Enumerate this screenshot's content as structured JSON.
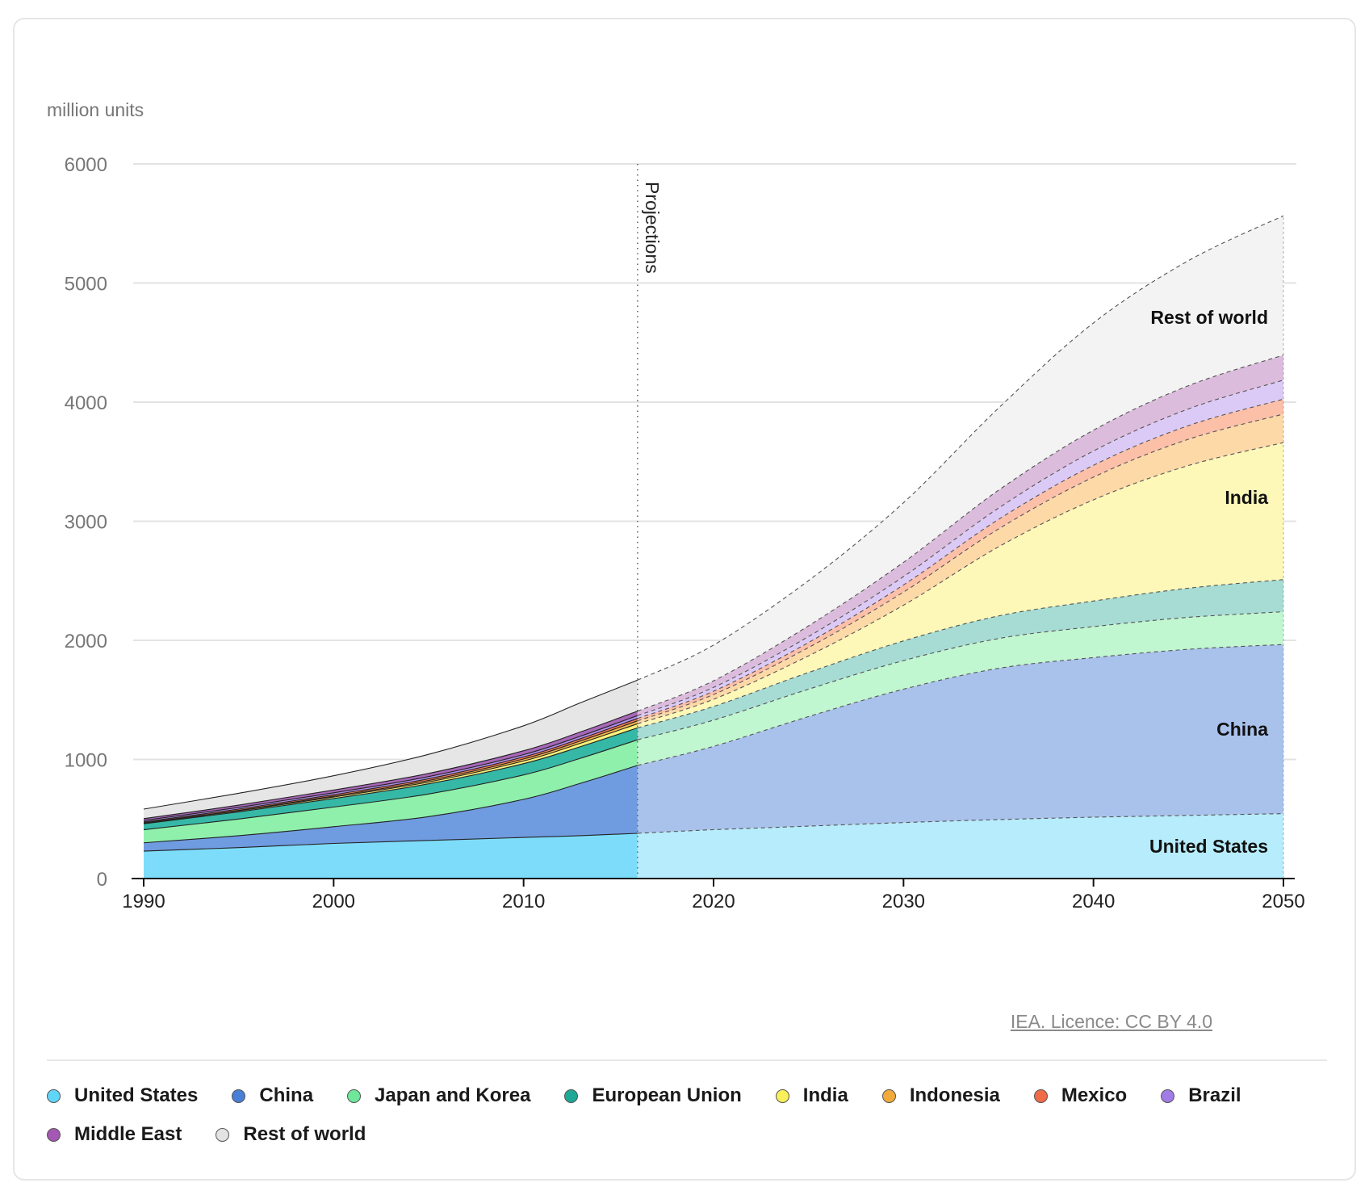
{
  "chart_data": {
    "type": "area",
    "stacked": true,
    "ylabel": "million units",
    "ylim": [
      0,
      6000
    ],
    "yticks": [
      0,
      1000,
      2000,
      3000,
      4000,
      5000,
      6000
    ],
    "xlim": [
      1990,
      2050
    ],
    "xticks": [
      1990,
      2000,
      2010,
      2020,
      2030,
      2040,
      2050
    ],
    "projection_start": 2016,
    "projection_label": "Projections",
    "x": [
      1990,
      1995,
      2000,
      2005,
      2010,
      2013,
      2016,
      2020,
      2025,
      2030,
      2035,
      2040,
      2045,
      2050
    ],
    "series": [
      {
        "name": "United States",
        "color": "#7edcfb",
        "proj_color": "#b6ecfc",
        "inline_label": "United States",
        "values": [
          230,
          260,
          295,
          320,
          345,
          360,
          380,
          410,
          440,
          470,
          495,
          515,
          530,
          545
        ]
      },
      {
        "name": "China",
        "color": "#6f9be0",
        "proj_color": "#a9c2ec",
        "inline_label": "China",
        "values": [
          70,
          100,
          140,
          200,
          320,
          440,
          570,
          700,
          920,
          1120,
          1270,
          1340,
          1395,
          1420
        ]
      },
      {
        "name": "Japan and Korea",
        "color": "#8ff0ac",
        "proj_color": "#c0f6d0",
        "values": [
          110,
          140,
          165,
          190,
          205,
          210,
          215,
          220,
          230,
          240,
          250,
          260,
          268,
          275
        ]
      },
      {
        "name": "European Union",
        "color": "#36b8a6",
        "proj_color": "#a6dcd4",
        "values": [
          50,
          60,
          72,
          85,
          95,
          98,
          100,
          115,
          140,
          165,
          190,
          215,
          245,
          270
        ]
      },
      {
        "name": "India",
        "color": "#fbf27a",
        "proj_color": "#fdf8b8",
        "inline_label": "India",
        "values": [
          5,
          8,
          12,
          16,
          22,
          28,
          35,
          60,
          140,
          300,
          580,
          850,
          1030,
          1150
        ]
      },
      {
        "name": "Indonesia",
        "color": "#f5b54a",
        "proj_color": "#fdd9a8",
        "values": [
          3,
          5,
          8,
          12,
          17,
          20,
          24,
          40,
          70,
          110,
          150,
          190,
          220,
          240
        ]
      },
      {
        "name": "Mexico",
        "color": "#f57d58",
        "proj_color": "#fcbfa8",
        "values": [
          8,
          10,
          12,
          15,
          17,
          18,
          20,
          28,
          42,
          60,
          80,
          100,
          115,
          125
        ]
      },
      {
        "name": "Brazil",
        "color": "#b08ce8",
        "proj_color": "#dccaf6",
        "values": [
          12,
          14,
          16,
          18,
          20,
          22,
          24,
          32,
          50,
          70,
          95,
          120,
          140,
          160
        ]
      },
      {
        "name": "Middle East",
        "color": "#a867b8",
        "proj_color": "#dcbcdc",
        "values": [
          15,
          19,
          23,
          27,
          32,
          35,
          38,
          55,
          90,
          120,
          150,
          175,
          195,
          210
        ]
      },
      {
        "name": "Rest of world",
        "color": "#e6e6e6",
        "proj_color": "#f3f3f3",
        "inline_label": "Rest of world",
        "values": [
          80,
          100,
          120,
          160,
          210,
          245,
          260,
          300,
          380,
          500,
          690,
          900,
          1050,
          1170
        ]
      }
    ]
  },
  "credit": "IEA. Licence: CC BY 4.0",
  "legend": {
    "items": [
      {
        "label": "United States",
        "color": "#5fd6f8"
      },
      {
        "label": "China",
        "color": "#4a7fd6"
      },
      {
        "label": "Japan and Korea",
        "color": "#6ee79b"
      },
      {
        "label": "European Union",
        "color": "#1ea896"
      },
      {
        "label": "India",
        "color": "#f8ef5a"
      },
      {
        "label": "Indonesia",
        "color": "#f2ab3a"
      },
      {
        "label": "Mexico",
        "color": "#f06c48"
      },
      {
        "label": "Brazil",
        "color": "#a27ce6"
      },
      {
        "label": "Middle East",
        "color": "#a458b3"
      },
      {
        "label": "Rest of world",
        "color": "#e3e3e3"
      }
    ]
  }
}
